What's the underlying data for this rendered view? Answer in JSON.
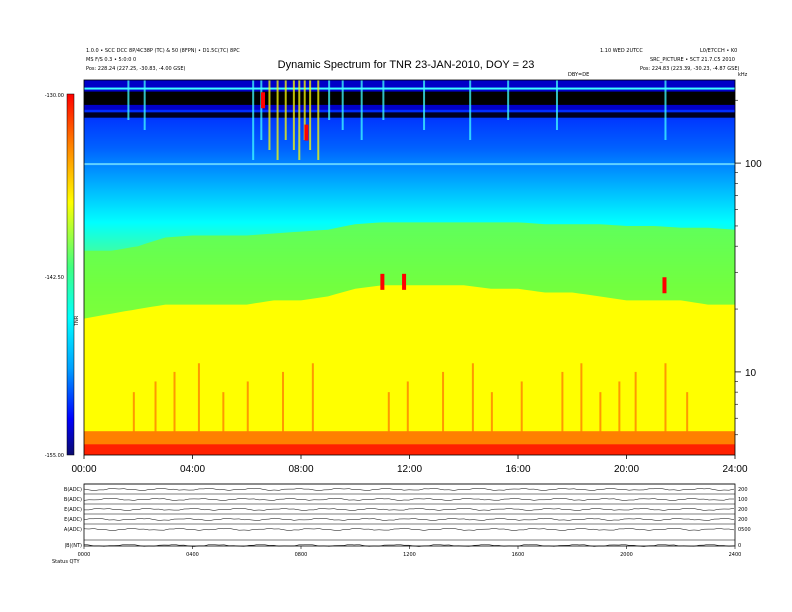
{
  "header": {
    "left_line1": "1.0.0 • SCC DCC 8P/4C38P (TC) & 50 (8FPN) • D1.5C(7C) 8PC",
    "left_line2": "MS F/S 0.3 • 5:0:0 0",
    "left_line3": "Pos:  228.24 (227.25, -30.83, -4.00 GSE)",
    "right_line1": "1.10 WED 2UTCC",
    "right_line2": "L0/E7CCH • K0",
    "right_line3": "SRC_PICTURE • 5CT 21.7.C5 2010",
    "right_line4": "Pos:  224.83 (223.39, -30.23, -4.87 GSE)",
    "title": "Dynamic Spectrum for TNR 23-JAN-2010, DOY = 23",
    "small_label_center": "DBY=DE",
    "small_label_right": "kHz"
  },
  "colorbar": {
    "tick_top": "-130.00",
    "tick_mid": "-142.50",
    "tick_bottom": "-155.00",
    "side_label": "TNR",
    "colors": [
      "#0b0b6e",
      "#0000ff",
      "#00a0ff",
      "#00ffff",
      "#40ff80",
      "#ffff00",
      "#ff8000",
      "#ff0000"
    ]
  },
  "chart_data": {
    "type": "heatmap",
    "title": "Dynamic Spectrum for TNR 23-JAN-2010, DOY = 23",
    "xlabel": "",
    "ylabel": "kHz",
    "x_ticks": [
      "00:00",
      "04:00",
      "08:00",
      "12:00",
      "16:00",
      "20:00",
      "24:00"
    ],
    "xlim_hours": [
      0,
      24
    ],
    "y_ticks": [
      "100",
      "10"
    ],
    "y_scale": "log",
    "y_range_khz": [
      4,
      250
    ],
    "color_range_db": [
      -155,
      -130
    ],
    "time_hours": [
      0,
      1,
      2,
      3,
      4,
      5,
      6,
      7,
      8,
      9,
      10,
      11,
      12,
      13,
      14,
      15,
      16,
      17,
      18,
      19,
      20,
      21,
      22,
      23,
      24
    ],
    "band_edges_khz": [
      {
        "name": "upper background boundary",
        "values_khz": [
          38,
          38,
          40,
          44,
          45,
          45,
          45,
          46,
          47,
          48,
          51,
          52,
          52,
          52,
          52,
          52,
          52,
          51,
          51,
          51,
          50,
          50,
          49,
          49,
          48
        ]
      },
      {
        "name": "yellow band boundary",
        "values_khz": [
          18,
          19,
          20,
          21,
          21,
          21,
          21,
          22,
          22,
          23,
          25,
          26,
          26,
          26,
          26,
          25,
          25,
          24,
          24,
          23,
          22,
          22,
          22,
          21,
          21
        ]
      }
    ],
    "bursts": [
      {
        "time_hours": 6.6,
        "khz": 200,
        "db": -130
      },
      {
        "time_hours": 8.2,
        "khz": 140,
        "db": -130
      },
      {
        "time_hours": 11.0,
        "khz": 27,
        "db": -131
      },
      {
        "time_hours": 11.8,
        "khz": 27,
        "db": -130
      },
      {
        "time_hours": 21.4,
        "khz": 26,
        "db": -130
      }
    ]
  },
  "stack_panel": {
    "row_labels": [
      "B(ADC)",
      "B(ADC)",
      "E(ADC)",
      "E(ADC)",
      "A(ADC)",
      "|B|(NT)"
    ],
    "right_labels": [
      "200",
      "100",
      "200",
      "200",
      "0500",
      "0"
    ],
    "x_ticks": [
      "0000",
      "0400",
      "0800",
      "1200",
      "1600",
      "2000",
      "2400"
    ],
    "bottom_left": "Status   QTY"
  }
}
